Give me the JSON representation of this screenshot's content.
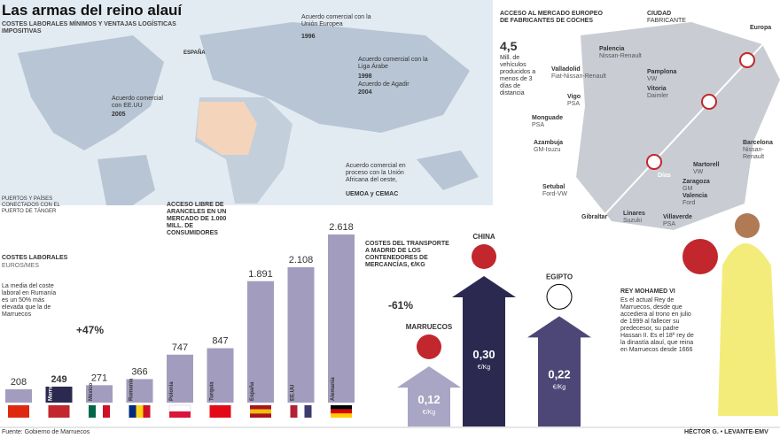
{
  "header": {
    "title": "Las armas del reino alauí",
    "subtitle": "COSTES LABORALES MÍNIMOS Y VENTAJAS LOGÍSTICAS IMPOSITIVAS"
  },
  "map": {
    "usa": {
      "label": "Acuerdo comercial con EE.UU",
      "year": "2005"
    },
    "eu": {
      "label": "Acuerdo comercial con la Unión Europea",
      "year": "1996"
    },
    "arab": {
      "label": "Acuerdo comercial con la Liga Árabe",
      "year": "1998",
      "label2": "Acuerdo de Agadir",
      "year2": "2004"
    },
    "africa": {
      "label": "Acuerdo comercial en proceso con la Unión Africana del oeste,",
      "label2": "UEMOA y CEMAC"
    },
    "spain": "ESPAÑA",
    "ports": "PUERTOS Y PAÍSES CONECTADOS CON EL PUERTO DE TÁNGER"
  },
  "chart_data": [
    {
      "type": "bar",
      "title": "COSTES LABORALES",
      "subtitle": "EUROS/MES",
      "heading2": "ACCESO LIBRE DE ARANCELES EN UN MERCADO DE 1.000 MILL. DE CONSUMIDORES",
      "note": "La media del coste laboral en Rumanía es un 50% más elevada que la de Marruecos",
      "annotation": "+47%",
      "categories": [
        null,
        "Marruecos",
        "México",
        "Rumanía",
        "Polonia",
        "Turquía",
        "España",
        "EE.UU",
        "Alemania"
      ],
      "values": [
        208,
        249,
        271,
        366,
        747,
        847,
        1891,
        2108,
        2618
      ],
      "value_labels": [
        "208",
        "249",
        "271",
        "366",
        "747",
        "847",
        "1.891",
        "2.108",
        "2.618"
      ],
      "colors": [
        "#a29dbf",
        "#2c2950",
        "#a29dbf",
        "#a29dbf",
        "#a29dbf",
        "#a29dbf",
        "#a29dbf",
        "#a29dbf",
        "#a29dbf"
      ]
    },
    {
      "type": "arrow",
      "title": "COSTES DEL TRANSPORTE A MADRID DE LOS CONTENEDORES DE MERCANCÍAS, €/KG",
      "annotation": "-61%",
      "unit": "€/Kg",
      "categories": [
        "MARRUECOS",
        "CHINA",
        "EGIPTO"
      ],
      "values": [
        0.12,
        0.3,
        0.22
      ],
      "value_labels": [
        "0,12",
        "0,30",
        "0,22"
      ],
      "colors": [
        "#a9a5c4",
        "#2c2950",
        "#4c4777"
      ]
    }
  ],
  "cars": {
    "title": "ACCESO AL MERCADO EUROPEO DE FABRICANTES DE COCHES",
    "legend": "CIUDAD",
    "legend2": "FABRICANTE",
    "big": "4,5",
    "big_text": "Mill. de vehículos producidos a menos de 3 días de distancia",
    "europe": "Europa",
    "gibraltar": "Gibraltar",
    "days": "Días",
    "cities": [
      {
        "name": "Palencia",
        "maker": "Nissan-Renault"
      },
      {
        "name": "Valladolid",
        "maker": "Fiat-Nissan-Renault"
      },
      {
        "name": "Pamplona",
        "maker": "VW"
      },
      {
        "name": "Vitoria",
        "maker": "Daimler"
      },
      {
        "name": "Vigo",
        "maker": "PSA"
      },
      {
        "name": "Monguade",
        "maker": "PSA"
      },
      {
        "name": "Azambuja",
        "maker": "GM-Isuzu"
      },
      {
        "name": "Barcelona",
        "maker": "Nissan-Renault"
      },
      {
        "name": "Martorell",
        "maker": "VW"
      },
      {
        "name": "Zaragoza",
        "maker": "GM"
      },
      {
        "name": "Valencia",
        "maker": "Ford"
      },
      {
        "name": "Setubal",
        "maker": "Ford-VW"
      },
      {
        "name": "Linares",
        "maker": "Suzuki"
      },
      {
        "name": "Villaverde",
        "maker": "PSA"
      }
    ]
  },
  "king": {
    "title": "REY MOHAMED VI",
    "text": "Es el actual Rey de Marruecos, desde que accediera al trono en julio de 1999 al fallecer su predecesor, su padre Hassan II. Es el 18º rey de la dinastía alauí, que reina en Marruecos desde 1666"
  },
  "footer": {
    "source": "Fuente: Gobierno de Marruecos",
    "credit": "HÉCTOR G. • LEVANTE-EMV"
  }
}
